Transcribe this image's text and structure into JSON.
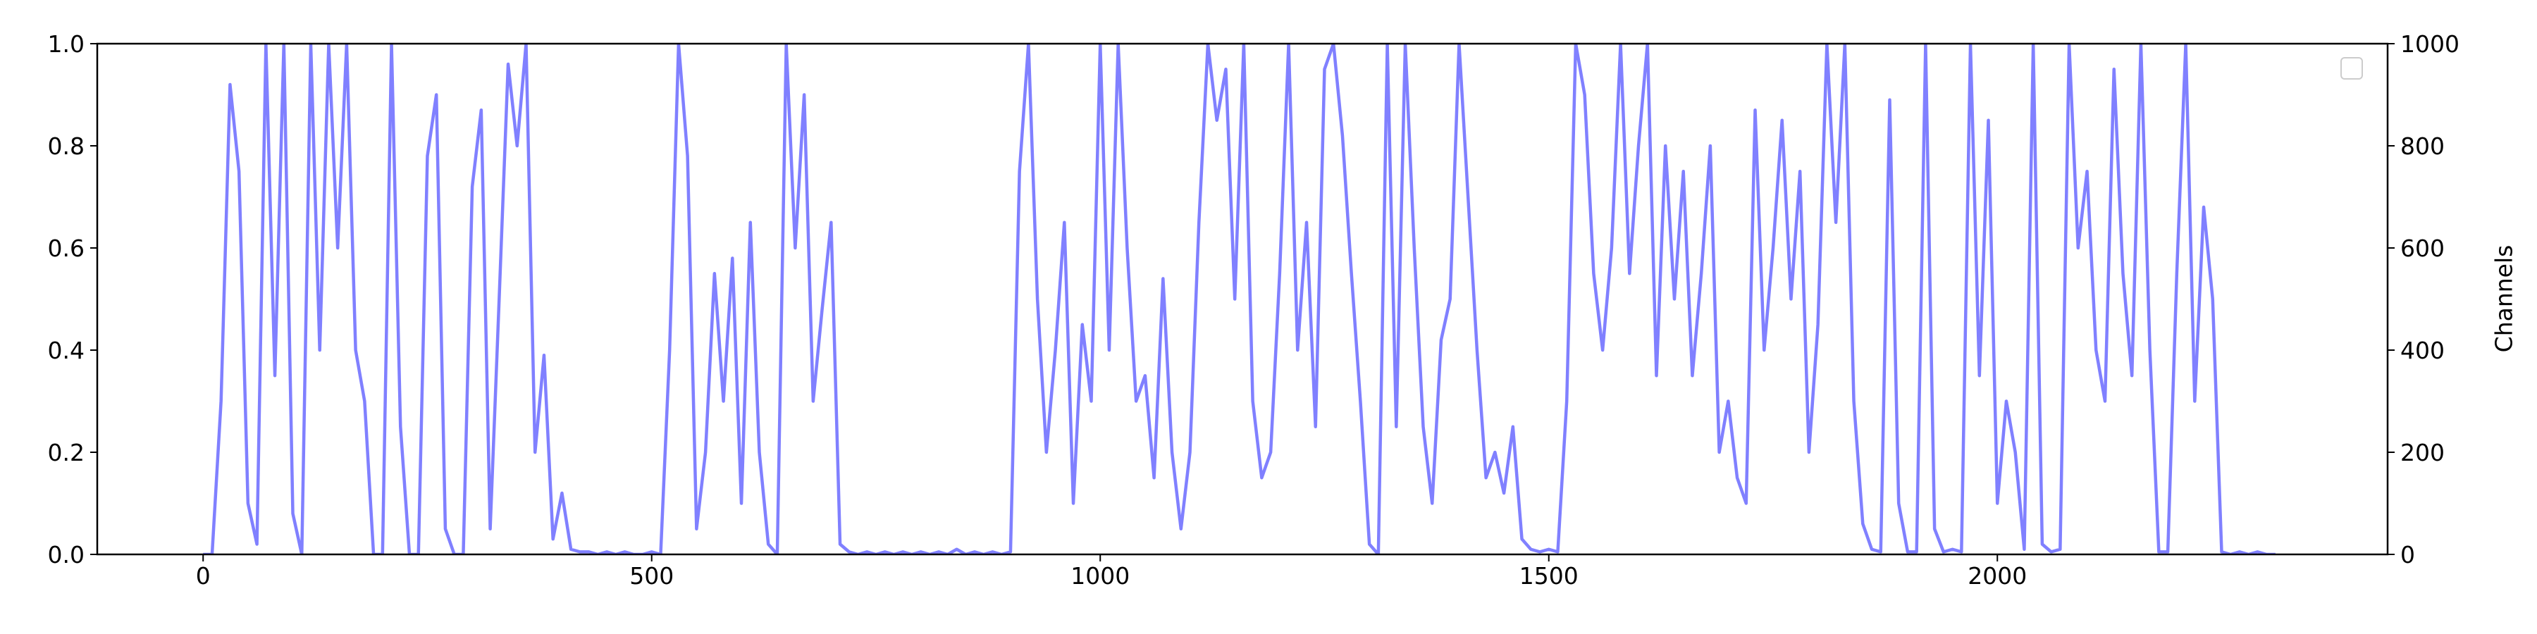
{
  "chart_data": {
    "type": "line",
    "x": [
      0,
      10,
      20,
      30,
      40,
      50,
      60,
      70,
      80,
      90,
      100,
      110,
      120,
      130,
      140,
      150,
      160,
      170,
      180,
      190,
      200,
      210,
      220,
      230,
      240,
      250,
      260,
      270,
      280,
      290,
      300,
      310,
      320,
      330,
      340,
      350,
      360,
      370,
      380,
      390,
      400,
      410,
      420,
      430,
      440,
      450,
      460,
      470,
      480,
      490,
      500,
      510,
      520,
      530,
      540,
      550,
      560,
      570,
      580,
      590,
      600,
      610,
      620,
      630,
      640,
      650,
      660,
      670,
      680,
      690,
      700,
      710,
      720,
      730,
      740,
      750,
      760,
      770,
      780,
      790,
      800,
      810,
      820,
      830,
      840,
      850,
      860,
      870,
      880,
      890,
      900,
      910,
      920,
      930,
      940,
      950,
      960,
      970,
      980,
      990,
      1000,
      1010,
      1020,
      1030,
      1040,
      1050,
      1060,
      1070,
      1080,
      1090,
      1100,
      1110,
      1120,
      1130,
      1140,
      1150,
      1160,
      1170,
      1180,
      1190,
      1200,
      1210,
      1220,
      1230,
      1240,
      1250,
      1260,
      1270,
      1280,
      1290,
      1300,
      1310,
      1320,
      1330,
      1340,
      1350,
      1360,
      1370,
      1380,
      1390,
      1400,
      1410,
      1420,
      1430,
      1440,
      1450,
      1460,
      1470,
      1480,
      1490,
      1500,
      1510,
      1520,
      1530,
      1540,
      1550,
      1560,
      1570,
      1580,
      1590,
      1600,
      1610,
      1620,
      1630,
      1640,
      1650,
      1660,
      1670,
      1680,
      1690,
      1700,
      1710,
      1720,
      1730,
      1740,
      1750,
      1760,
      1770,
      1780,
      1790,
      1800,
      1810,
      1820,
      1830,
      1840,
      1850,
      1860,
      1870,
      1880,
      1890,
      1900,
      1910,
      1920,
      1930,
      1940,
      1950,
      1960,
      1970,
      1980,
      1990,
      2000,
      2010,
      2020,
      2030,
      2040,
      2050,
      2060,
      2070,
      2080,
      2090,
      2100,
      2110,
      2120,
      2130,
      2140,
      2150,
      2160,
      2170,
      2180,
      2190,
      2200,
      2210,
      2220,
      2230,
      2240,
      2250,
      2260,
      2270,
      2280,
      2290,
      2300,
      2310
    ],
    "series": [
      {
        "color": "#8080ff",
        "axis": "y2",
        "values": [
          0,
          0,
          300,
          920,
          750,
          100,
          20,
          1000,
          350,
          1000,
          80,
          0,
          1000,
          400,
          1000,
          600,
          1000,
          400,
          300,
          0,
          0,
          1000,
          250,
          0,
          0,
          780,
          900,
          50,
          0,
          0,
          720,
          870,
          50,
          500,
          960,
          800,
          1000,
          200,
          390,
          30,
          120,
          10,
          5,
          5,
          0,
          5,
          0,
          5,
          0,
          0,
          5,
          0,
          400,
          1000,
          780,
          50,
          200,
          550,
          300,
          580,
          100,
          650,
          200,
          20,
          0,
          1000,
          600,
          900,
          300,
          480,
          650,
          20,
          5,
          0,
          5,
          0,
          5,
          0,
          5,
          0,
          5,
          0,
          5,
          0,
          10,
          0,
          5,
          0,
          5,
          0,
          5,
          750,
          1000,
          500,
          200,
          400,
          650,
          100,
          450,
          300,
          1000,
          400,
          1000,
          600,
          300,
          350,
          150,
          540,
          200,
          50,
          200,
          650,
          1000,
          850,
          950,
          500,
          1000,
          300,
          150,
          200,
          550,
          1000,
          400,
          650,
          250,
          950,
          1000,
          820,
          550,
          300,
          20,
          0,
          1000,
          250,
          1000,
          600,
          250,
          100,
          420,
          500,
          1000,
          700,
          400,
          150,
          200,
          120,
          250,
          30,
          10,
          5,
          10,
          5,
          300,
          1000,
          900,
          550,
          400,
          600,
          1000,
          550,
          800,
          1000,
          350,
          800,
          500,
          750,
          350,
          550,
          800,
          200,
          300,
          150,
          100,
          870,
          400,
          600,
          850,
          500,
          750,
          200,
          450,
          1000,
          650,
          1000,
          300,
          60,
          10,
          5,
          890,
          100,
          5,
          5,
          1000,
          50,
          5,
          10,
          5,
          1000,
          350,
          850,
          100,
          300,
          200,
          10,
          1000,
          20,
          5,
          10,
          1000,
          600,
          750,
          400,
          300,
          950,
          550,
          350,
          1000,
          400,
          5,
          5,
          550,
          1000,
          300,
          680,
          500,
          5,
          0,
          5,
          0,
          5,
          0,
          0
        ]
      }
    ],
    "xlim": [
      -118,
      2435
    ],
    "xticks": [
      0,
      500,
      1000,
      1500,
      2000
    ],
    "ylim": [
      0,
      1
    ],
    "yticks": [
      {
        "value": 0,
        "label": "0.0"
      },
      {
        "value": 0.2,
        "label": "0.2"
      },
      {
        "value": 0.4,
        "label": "0.4"
      },
      {
        "value": 0.6,
        "label": "0.6"
      },
      {
        "value": 0.8,
        "label": "0.8"
      },
      {
        "value": 1,
        "label": "1.0"
      }
    ],
    "y2lim": [
      0,
      1000
    ],
    "y2ticks": [
      0,
      200,
      400,
      600,
      800,
      1000
    ],
    "y2label": "Channels"
  }
}
